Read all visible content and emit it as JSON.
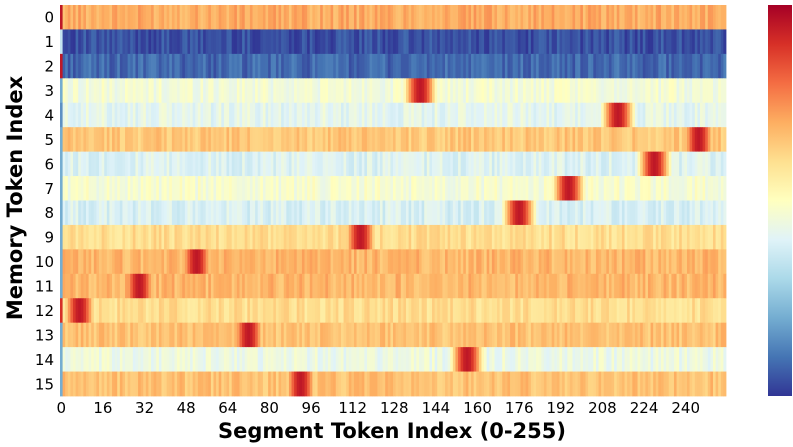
{
  "chart_data": {
    "type": "heatmap",
    "xlabel": "Segment Token Index (0-255)",
    "ylabel": "Memory Token Index",
    "x_tick_labels": [
      "0",
      "16",
      "32",
      "48",
      "64",
      "80",
      "96",
      "112",
      "128",
      "144",
      "160",
      "176",
      "192",
      "208",
      "224",
      "240"
    ],
    "x_tick_values": [
      0,
      16,
      32,
      48,
      64,
      80,
      96,
      112,
      128,
      144,
      160,
      176,
      192,
      208,
      224,
      240
    ],
    "y_tick_labels": [
      "0",
      "1",
      "2",
      "3",
      "4",
      "5",
      "6",
      "7",
      "8",
      "9",
      "10",
      "11",
      "12",
      "13",
      "14",
      "15"
    ],
    "n_cols": 256,
    "n_rows": 16,
    "colormap": "RdYlBu_r",
    "colorbar": true,
    "value_range": [
      0,
      1
    ],
    "rows": [
      {
        "index": 0,
        "base": 0.7,
        "peak_center": null,
        "first_col": 0.95
      },
      {
        "index": 1,
        "base": 0.04,
        "peak_center": null,
        "first_col": 0.35
      },
      {
        "index": 2,
        "base": 0.08,
        "peak_center": null,
        "first_col": 0.95
      },
      {
        "index": 3,
        "base": 0.46,
        "peak_center": 138,
        "first_col": 0.2
      },
      {
        "index": 4,
        "base": 0.42,
        "peak_center": 214,
        "first_col": 0.15
      },
      {
        "index": 5,
        "base": 0.65,
        "peak_center": 245,
        "first_col": 0.2
      },
      {
        "index": 6,
        "base": 0.4,
        "peak_center": 228,
        "first_col": 0.2
      },
      {
        "index": 7,
        "base": 0.47,
        "peak_center": 195,
        "first_col": 0.2
      },
      {
        "index": 8,
        "base": 0.39,
        "peak_center": 176,
        "first_col": 0.2
      },
      {
        "index": 9,
        "base": 0.6,
        "peak_center": 115,
        "first_col": 0.2
      },
      {
        "index": 10,
        "base": 0.68,
        "peak_center": 52,
        "first_col": 0.2
      },
      {
        "index": 11,
        "base": 0.68,
        "peak_center": 30,
        "first_col": 0.2
      },
      {
        "index": 12,
        "base": 0.6,
        "peak_center": 7,
        "first_col": 0.9
      },
      {
        "index": 13,
        "base": 0.66,
        "peak_center": 72,
        "first_col": 0.2
      },
      {
        "index": 14,
        "base": 0.44,
        "peak_center": 156,
        "first_col": 0.2
      },
      {
        "index": 15,
        "base": 0.66,
        "peak_center": 92,
        "first_col": 0.2
      }
    ]
  }
}
